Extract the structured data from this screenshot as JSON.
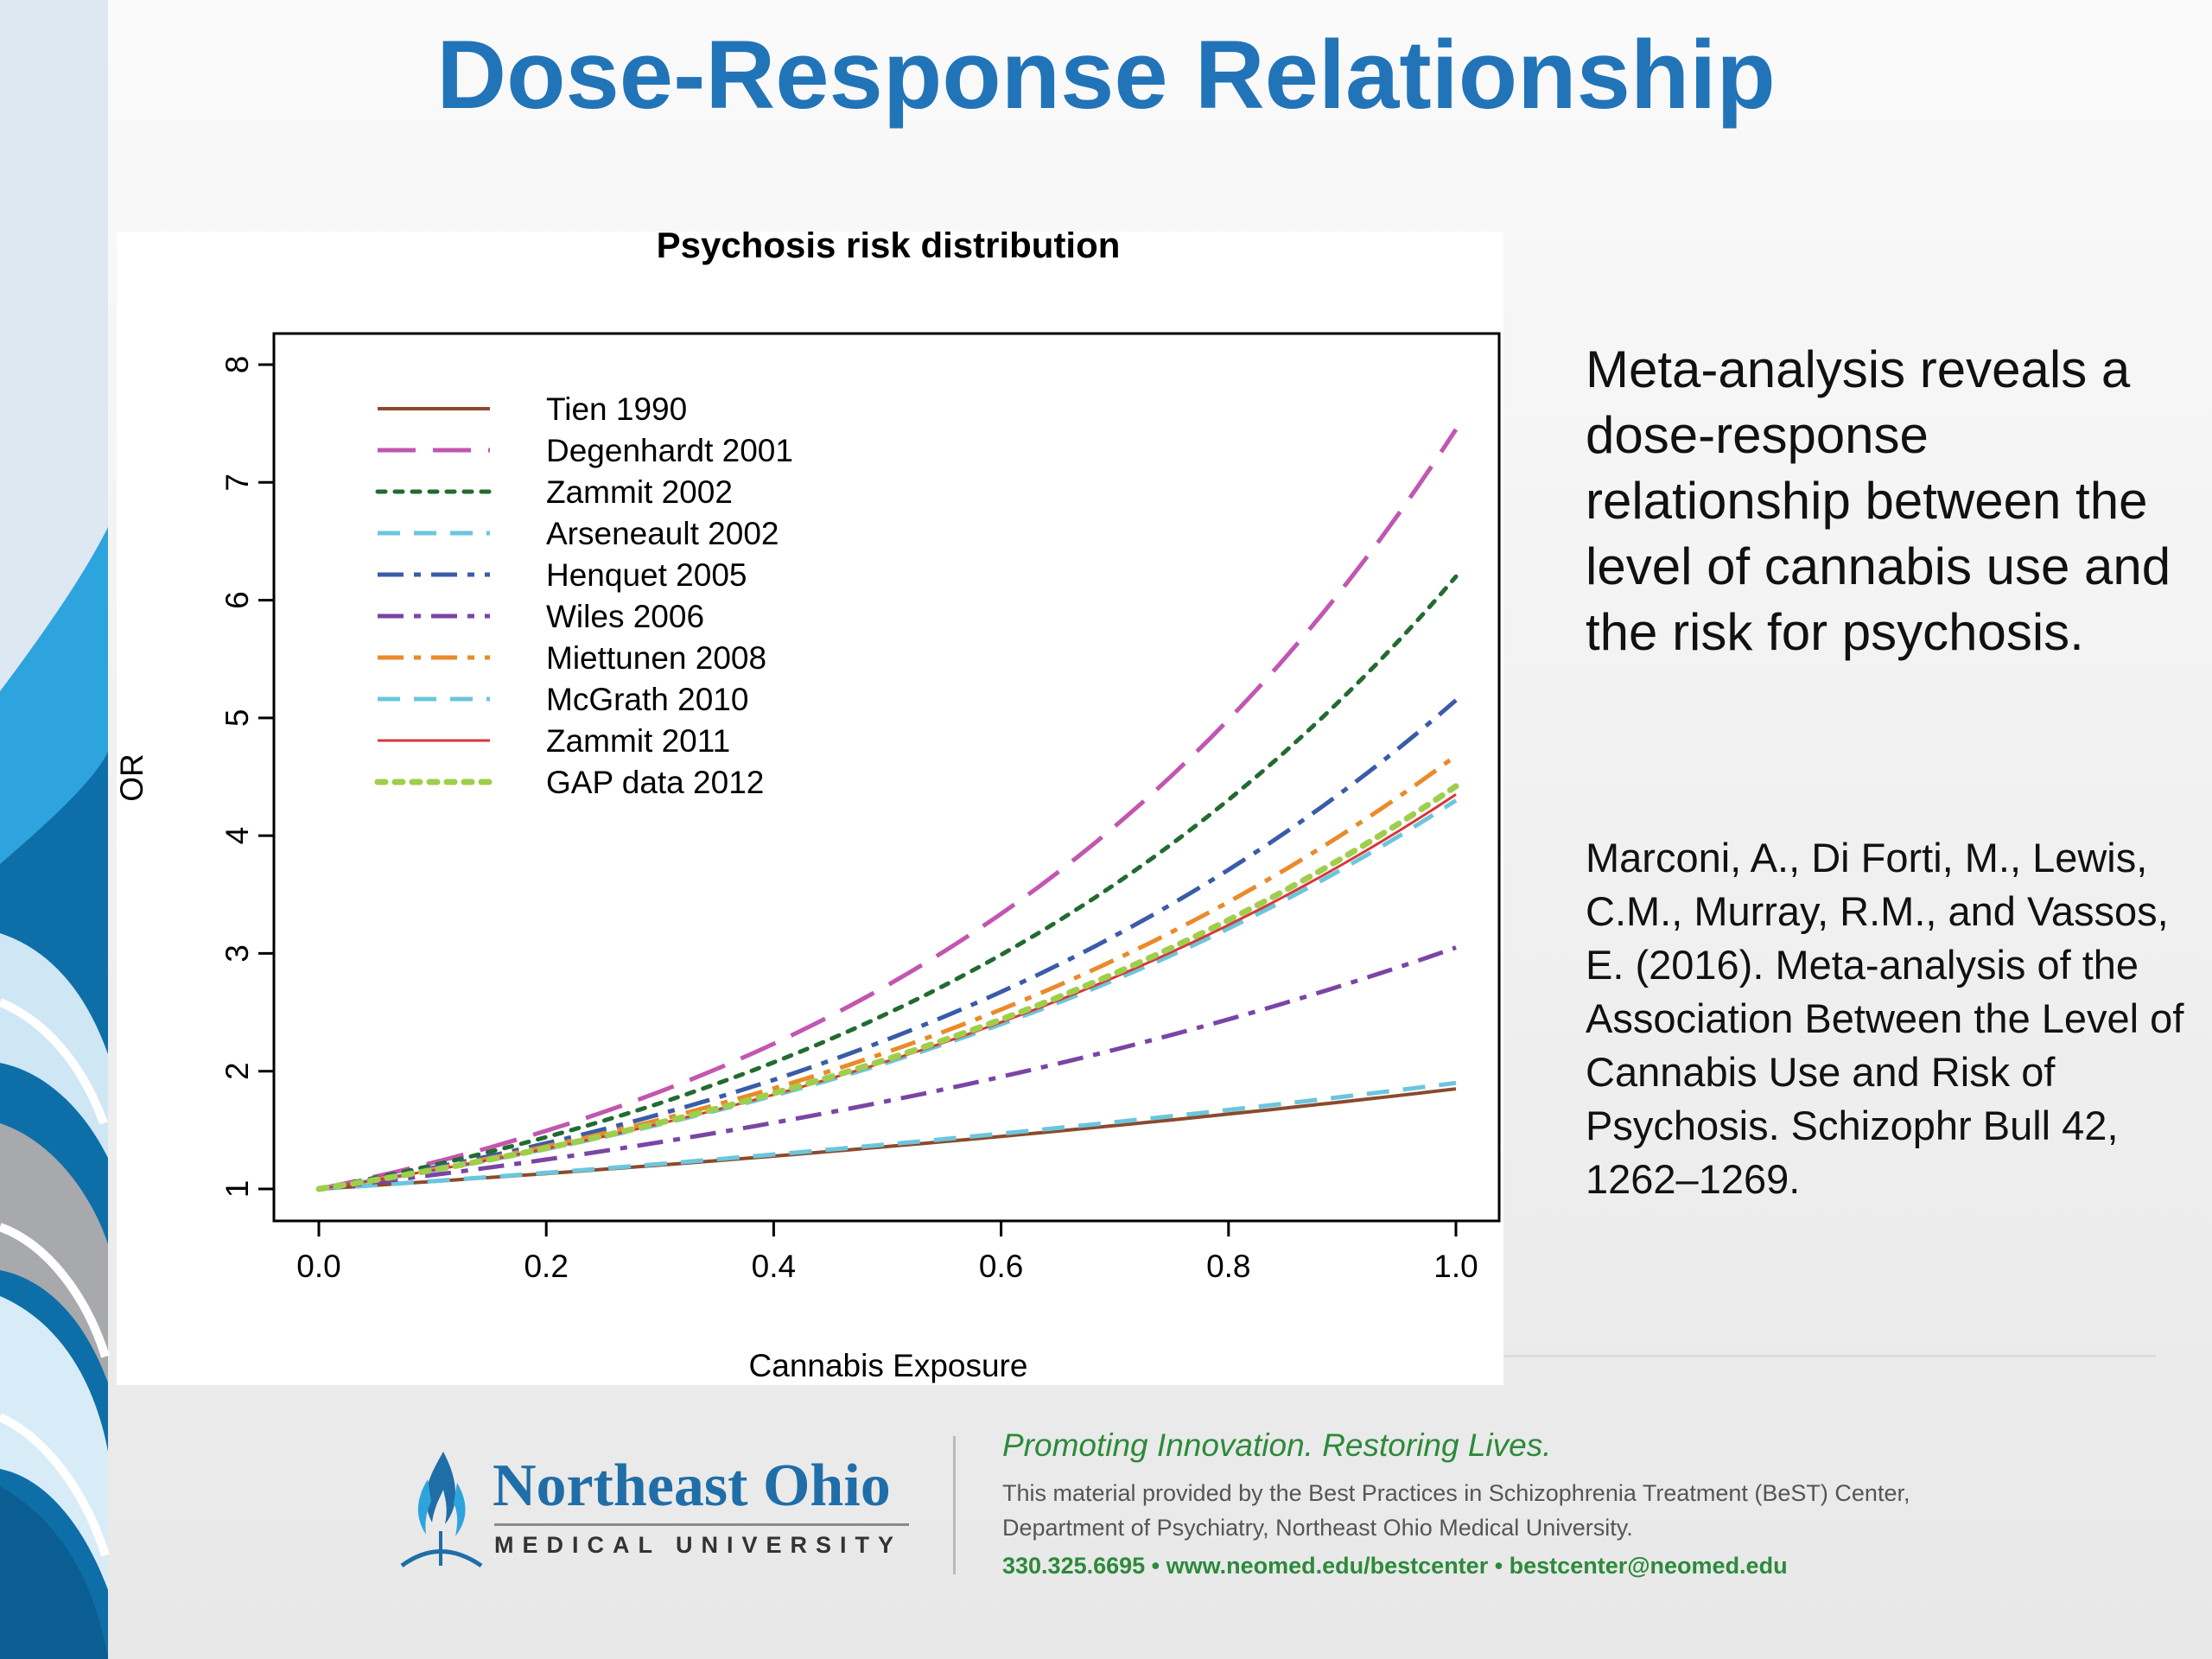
{
  "slide": {
    "title": "Dose-Response Relationship",
    "summary": "Meta-analysis reveals a dose-response relationship between the level of cannabis use and the risk for psychosis.",
    "citation": "Marconi, A., Di Forti, M., Lewis, C.M., Murray, R.M., and Vassos, E. (2016). Meta-analysis of the Association Between the Level of Cannabis Use and Risk of Psychosis. Schizophr Bull 42, 1262–1269."
  },
  "footer": {
    "org_name": "Northeast Ohio",
    "org_sub": "MEDICAL UNIVERSITY",
    "tagline": "Promoting Innovation. Restoring Lives.",
    "note": "This material provided by the Best Practices in Schizophrenia Treatment (BeST) Center, Department of Psychiatry, Northeast Ohio Medical University.",
    "contact": "330.325.6695 • www.neomed.edu/bestcenter • bestcenter@neomed.edu",
    "logo_icon": "flame-logo-icon"
  },
  "chart_data": {
    "type": "line",
    "title": "Psychosis risk distribution",
    "xlabel": "Cannabis Exposure",
    "ylabel": "OR",
    "xlim": [
      0,
      1
    ],
    "ylim": [
      1,
      8
    ],
    "x_ticks": [
      0.0,
      0.2,
      0.4,
      0.6,
      0.8,
      1.0
    ],
    "x_tick_labels": [
      "0.0",
      "0.2",
      "0.4",
      "0.6",
      "0.8",
      "1.0"
    ],
    "y_ticks": [
      1,
      2,
      3,
      4,
      5,
      6,
      7,
      8
    ],
    "y_tick_labels": [
      "1",
      "2",
      "3",
      "4",
      "5",
      "6",
      "7",
      "8"
    ],
    "legend_position": "top-left",
    "grid": false,
    "curve_form": "OR = end_value ^ x",
    "series": [
      {
        "name": "Tien 1990",
        "end_value": 1.85,
        "color": "#8b4a2e",
        "dash": "solid",
        "width": 4
      },
      {
        "name": "Degenhardt 2001",
        "end_value": 7.45,
        "color": "#c256b0",
        "dash": "longdash",
        "width": 5
      },
      {
        "name": "Zammit 2002",
        "end_value": 6.2,
        "color": "#226b30",
        "dash": "dotted",
        "width": 5
      },
      {
        "name": "Arseneault 2002",
        "end_value": 1.9,
        "color": "#6bc6dc",
        "dash": "dashed",
        "width": 5
      },
      {
        "name": "Henquet 2005",
        "end_value": 5.15,
        "color": "#3a5ca8",
        "dash": "dotdash",
        "width": 5
      },
      {
        "name": "Wiles 2006",
        "end_value": 3.05,
        "color": "#7a45a5",
        "dash": "dotdash",
        "width": 5
      },
      {
        "name": "Miettunen 2008",
        "end_value": 4.68,
        "color": "#ea8a2a",
        "dash": "dotdash",
        "width": 5
      },
      {
        "name": "McGrath 2010",
        "end_value": 4.3,
        "color": "#6bc6dc",
        "dash": "dashed",
        "width": 5
      },
      {
        "name": "Zammit 2011",
        "end_value": 4.35,
        "color": "#d8373a",
        "dash": "solid",
        "width": 3
      },
      {
        "name": "GAP data 2012",
        "end_value": 4.42,
        "color": "#9fce4c",
        "dash": "dotted",
        "width": 7
      }
    ]
  }
}
